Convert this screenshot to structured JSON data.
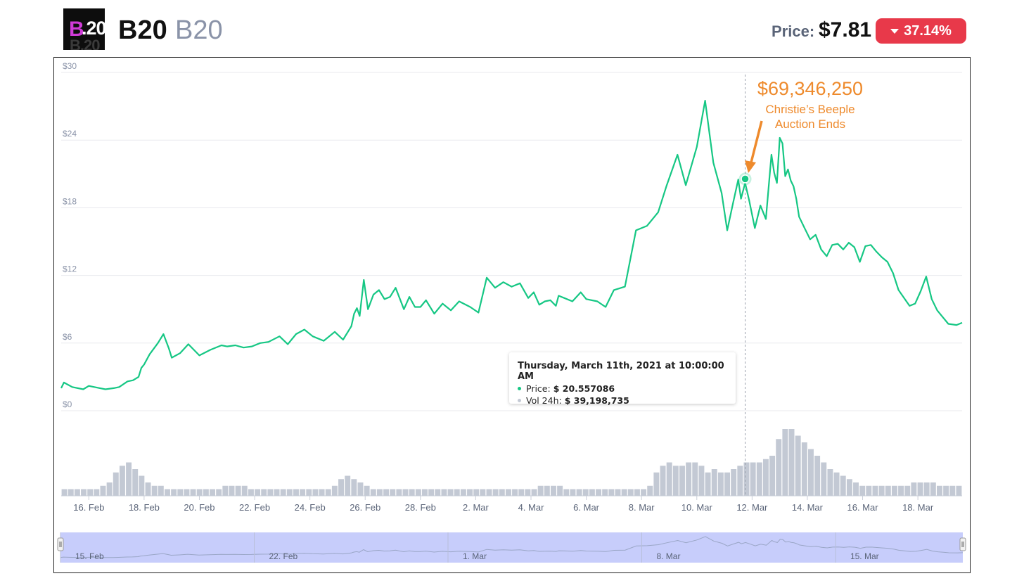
{
  "header": {
    "logo_text_b": "B",
    "logo_text_num": ".20",
    "logo_text_ghost": "B.20",
    "coin_name": "B20",
    "coin_symbol": "B20",
    "price_label": "Price:",
    "price_value": "$7.81",
    "change_value": "37.14%",
    "change_direction": "down"
  },
  "colors": {
    "line": "#16c784",
    "volume": "#c3c9d4",
    "navigator_fill": "#c7cdfb",
    "annotation": "#ee8a2c",
    "negative": "#e8394a"
  },
  "annotation": {
    "amount": "$69,346,250",
    "line1": "Christie’s Beeple",
    "line2": "Auction Ends"
  },
  "tooltip": {
    "title": "Thursday, March 11th, 2021 at 10:00:00 AM",
    "price_label": "Price:",
    "price_value": "$ 20.557086",
    "volume_label": "Vol 24h:",
    "volume_value": "$ 39,198,735"
  },
  "chart_data": {
    "type": "line",
    "title": "",
    "xlabel": "",
    "ylabel": "",
    "ylim": [
      0,
      30
    ],
    "y_ticks": [
      "$0",
      "$6",
      "$12",
      "$18",
      "$24",
      "$30"
    ],
    "x_ticks": [
      "16. Feb",
      "18. Feb",
      "20. Feb",
      "22. Feb",
      "24. Feb",
      "26. Feb",
      "28. Feb",
      "2. Mar",
      "4. Mar",
      "6. Mar",
      "8. Mar",
      "10. Mar",
      "12. Mar",
      "14. Mar",
      "16. Mar",
      "18. Mar"
    ],
    "navigator_ticks": [
      "15. Feb",
      "22. Feb",
      "1. Mar",
      "8. Mar",
      "15. Mar"
    ],
    "grid": true,
    "series": [
      {
        "values_note_x": "day of range starting 15. Feb",
        "x": [
          0,
          0.1,
          0.4,
          0.8,
          1.0,
          1.4,
          1.6,
          1.9,
          2.1,
          2.4,
          2.6,
          2.8,
          2.9,
          3.0,
          3.2,
          3.5,
          3.7,
          3.9,
          4.0,
          4.3,
          4.6,
          5.0,
          5.4,
          5.8,
          6.0,
          6.3,
          6.6,
          6.9,
          7.2,
          7.5,
          7.9,
          8.2,
          8.5,
          8.8,
          9.1,
          9.5,
          9.9,
          10.2,
          10.5,
          10.6,
          10.7,
          10.8,
          10.95,
          11.1,
          11.3,
          11.5,
          11.7,
          11.9,
          12.1,
          12.4,
          12.6,
          12.8,
          13.0,
          13.2,
          13.5,
          13.8,
          14.1,
          14.4,
          14.8,
          15.1,
          15.4,
          15.7,
          16.0,
          16.3,
          16.6,
          16.9,
          17.1,
          17.3,
          17.5,
          17.7,
          17.9,
          18.0,
          18.2,
          18.5,
          18.8,
          19.0,
          19.4,
          19.7,
          20.0,
          20.4,
          20.8,
          21.2,
          21.6,
          21.9,
          22.3,
          22.6,
          23.0,
          23.3,
          23.6,
          23.9,
          24.1,
          24.3,
          24.5,
          24.6,
          24.75,
          24.9,
          25.1,
          25.3,
          25.5,
          25.7,
          25.8,
          25.9,
          26.0,
          26.1,
          26.2,
          26.3,
          26.4,
          26.5,
          26.6,
          26.7,
          26.9,
          27.1,
          27.3,
          27.5,
          27.7,
          27.9,
          28.1,
          28.3,
          28.5,
          28.7,
          28.9,
          29.1,
          29.3,
          29.5,
          29.7,
          29.9,
          30.1,
          30.3,
          30.5,
          30.7,
          30.9,
          31.1,
          31.3,
          31.5,
          31.7,
          31.9,
          32.1,
          32.4,
          32.6
        ],
        "values": [
          2.0,
          2.5,
          2.1,
          1.9,
          2.2,
          2.0,
          1.9,
          2.0,
          2.1,
          2.6,
          2.7,
          3.0,
          3.8,
          4.1,
          5.0,
          6.0,
          6.8,
          5.5,
          4.7,
          5.1,
          5.9,
          4.9,
          5.4,
          5.8,
          5.7,
          5.8,
          5.6,
          5.7,
          6.0,
          6.1,
          6.6,
          5.9,
          6.8,
          7.2,
          6.6,
          6.2,
          7.0,
          6.3,
          7.5,
          8.6,
          9.1,
          8.4,
          11.6,
          9.0,
          10.3,
          10.7,
          9.9,
          10.1,
          10.9,
          9.0,
          10.1,
          9.2,
          9.2,
          9.8,
          8.6,
          9.5,
          8.9,
          9.7,
          9.2,
          8.7,
          11.8,
          10.9,
          11.4,
          11.0,
          11.3,
          10.0,
          10.5,
          9.4,
          9.7,
          9.8,
          9.3,
          10.2,
          10.0,
          9.7,
          10.5,
          9.9,
          9.7,
          9.2,
          10.7,
          11.0,
          16.0,
          16.4,
          17.6,
          19.9,
          22.7,
          20.0,
          23.4,
          27.5,
          22.0,
          19.3,
          16.0,
          18.3,
          20.5,
          18.8,
          20.2,
          18.6,
          16.2,
          18.2,
          17.0,
          22.7,
          21.1,
          20.2,
          24.2,
          23.7,
          20.8,
          21.4,
          20.4,
          19.9,
          18.8,
          17.2,
          16.2,
          15.2,
          15.6,
          14.3,
          13.7,
          14.7,
          14.8,
          14.3,
          14.9,
          14.5,
          13.2,
          14.6,
          14.7,
          14.1,
          13.6,
          13.2,
          12.2,
          10.7,
          10.0,
          9.3,
          9.5,
          10.6,
          11.9,
          9.9,
          8.9,
          8.3,
          7.7,
          7.6,
          7.8
        ]
      }
    ],
    "highlight_point": {
      "x": 24.75,
      "y": 20.557086
    },
    "volume_values": [
      0.02,
      0.02,
      0.02,
      0.02,
      0.02,
      0.02,
      0.03,
      0.04,
      0.07,
      0.09,
      0.1,
      0.08,
      0.06,
      0.04,
      0.03,
      0.03,
      0.02,
      0.02,
      0.02,
      0.02,
      0.02,
      0.02,
      0.02,
      0.02,
      0.02,
      0.03,
      0.03,
      0.03,
      0.03,
      0.02,
      0.02,
      0.02,
      0.02,
      0.02,
      0.02,
      0.02,
      0.02,
      0.02,
      0.02,
      0.02,
      0.02,
      0.02,
      0.03,
      0.05,
      0.06,
      0.05,
      0.04,
      0.03,
      0.02,
      0.02,
      0.02,
      0.02,
      0.02,
      0.02,
      0.02,
      0.02,
      0.02,
      0.02,
      0.02,
      0.02,
      0.02,
      0.02,
      0.02,
      0.02,
      0.02,
      0.02,
      0.02,
      0.02,
      0.02,
      0.02,
      0.02,
      0.02,
      0.02,
      0.02,
      0.03,
      0.03,
      0.03,
      0.03,
      0.02,
      0.02,
      0.02,
      0.02,
      0.02,
      0.02,
      0.02,
      0.02,
      0.02,
      0.02,
      0.02,
      0.02,
      0.02,
      0.03,
      0.07,
      0.09,
      0.1,
      0.09,
      0.09,
      0.1,
      0.1,
      0.09,
      0.07,
      0.08,
      0.07,
      0.07,
      0.08,
      0.09,
      0.1,
      0.1,
      0.1,
      0.11,
      0.12,
      0.17,
      0.2,
      0.2,
      0.18,
      0.16,
      0.14,
      0.12,
      0.1,
      0.08,
      0.07,
      0.06,
      0.05,
      0.04,
      0.03,
      0.03,
      0.03,
      0.03,
      0.03,
      0.03,
      0.03,
      0.03,
      0.04,
      0.04,
      0.04,
      0.04,
      0.03,
      0.03,
      0.03,
      0.03
    ],
    "volume_note": "relative volume heights, shown as bars under the price line"
  }
}
